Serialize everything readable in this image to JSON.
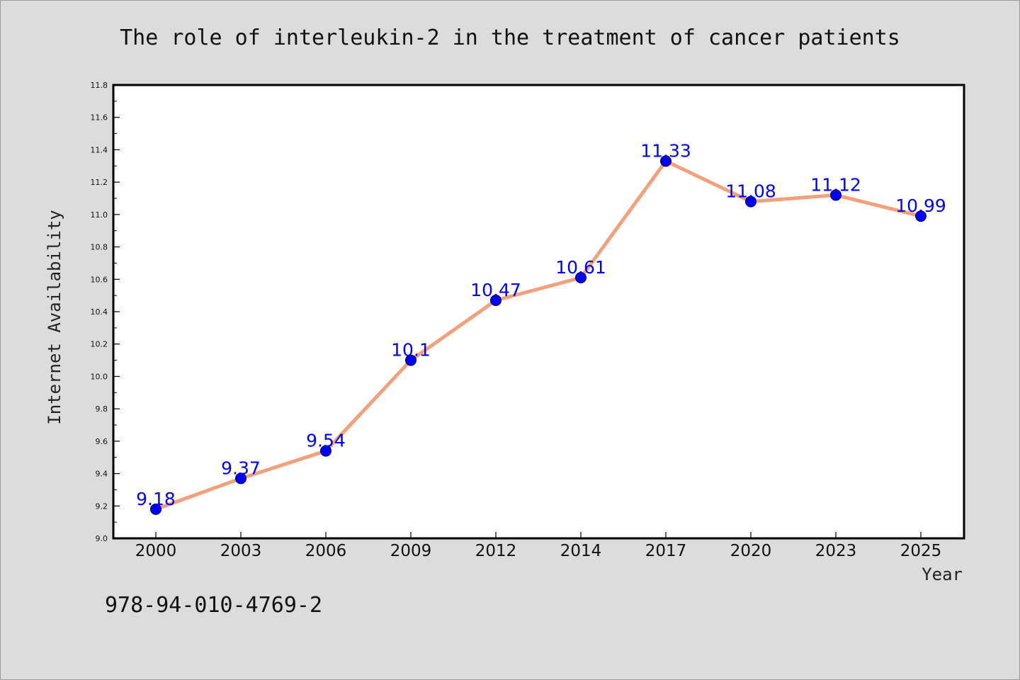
{
  "chart_data": {
    "type": "line",
    "title": "The role of interleukin-2 in the treatment of cancer patients",
    "xlabel": "Year",
    "ylabel": "Internet Availability",
    "categories": [
      "2000",
      "2003",
      "2006",
      "2009",
      "2012",
      "2014",
      "2017",
      "2020",
      "2023",
      "2025"
    ],
    "series": [
      {
        "values": [
          9.18,
          9.37,
          9.54,
          10.1,
          10.47,
          10.61,
          11.33,
          11.08,
          11.12,
          10.99
        ]
      }
    ],
    "data_labels": [
      "9.18",
      "9.37",
      "9.54",
      "10.1",
      "10.47",
      "10.61",
      "11.33",
      "11.08",
      "11.12",
      "10.99"
    ],
    "ylim": [
      9.0,
      11.8
    ],
    "yticks": [
      "9.0",
      "9.2",
      "9.4",
      "9.6",
      "9.8",
      "10.0",
      "10.2",
      "10.4",
      "10.6",
      "10.8",
      "11.0",
      "11.2",
      "11.4",
      "11.6",
      "11.8"
    ],
    "grid": false,
    "legend": "none",
    "colors": {
      "line": "#f4a07c",
      "marker": "#0000ff",
      "label": "#0000ff",
      "plot_bg": "#ffffff",
      "page_bg": "#dcdcdc"
    }
  },
  "footer": {
    "isbn": "978-94-010-4769-2"
  }
}
